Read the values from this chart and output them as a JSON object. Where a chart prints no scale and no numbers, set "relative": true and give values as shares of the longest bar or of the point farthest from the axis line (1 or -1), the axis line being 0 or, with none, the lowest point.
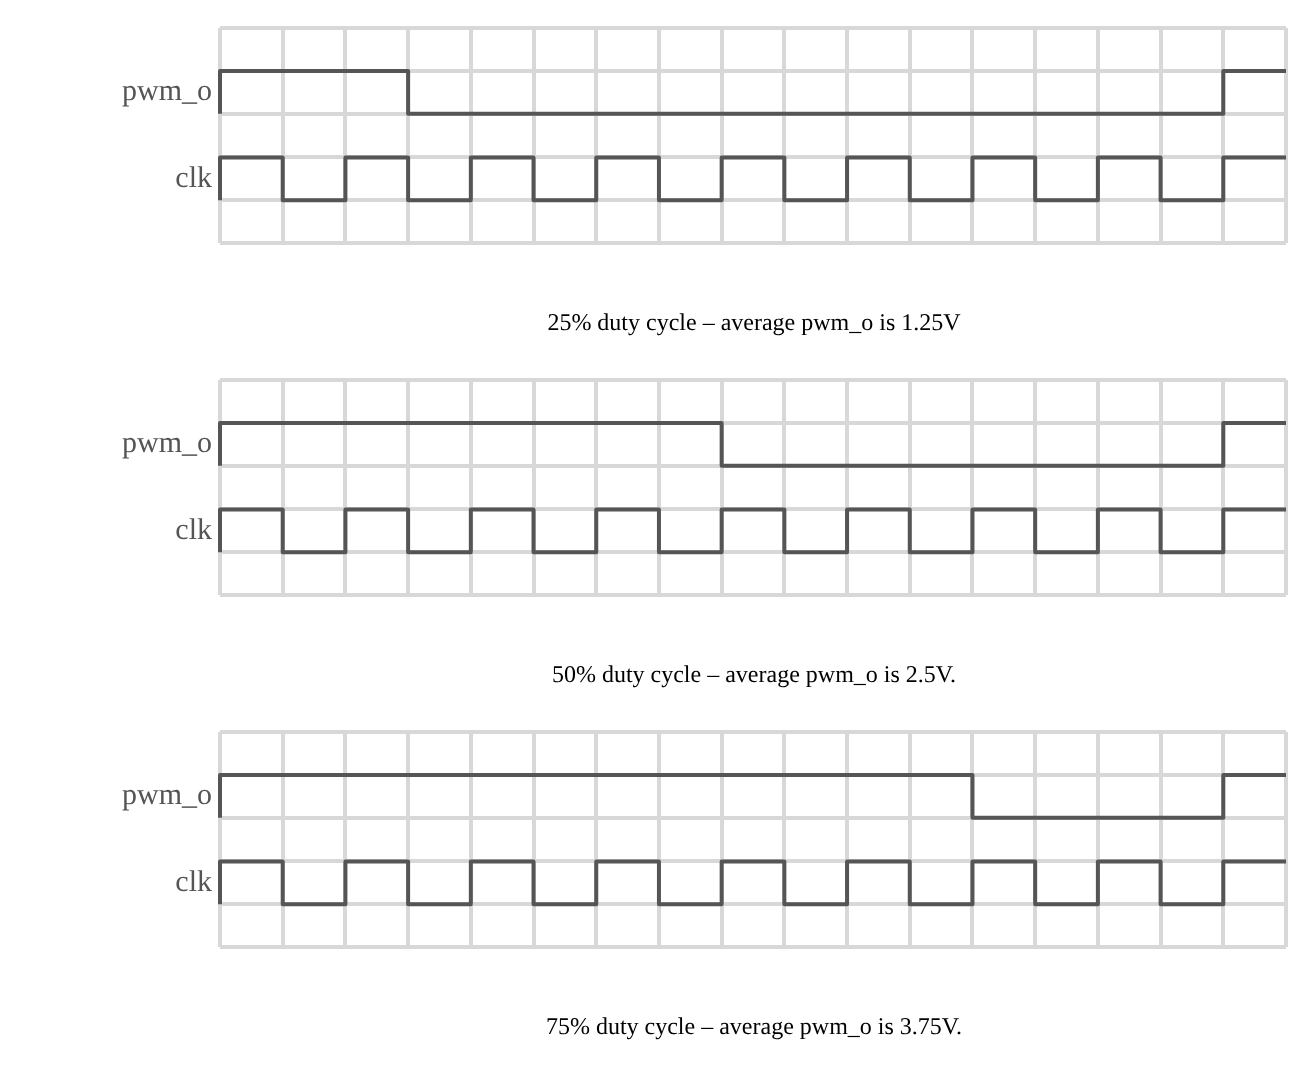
{
  "chart_data": [
    {
      "type": "step",
      "relative": true,
      "categories": [
        null,
        null,
        null,
        null,
        null,
        null,
        null,
        null,
        null,
        null,
        null,
        null,
        null,
        null,
        null,
        null,
        null,
        null
      ],
      "grid": true,
      "legend": false,
      "marker": "none",
      "line_style": "solid",
      "annotations": [
        "25% duty cycle – average pwm_o is 1.25V"
      ],
      "series": [
        {
          "name": "pwm_o",
          "color": "#555555",
          "values": [
            0.67,
            1,
            1,
            1,
            0.67,
            0.67,
            0.67,
            0.67,
            0.67,
            0.67,
            0.67,
            0.67,
            0.67,
            0.67,
            0.67,
            0.67,
            0.67,
            1
          ]
        },
        {
          "name": "clk",
          "color": "#555555",
          "values": [
            0,
            0.33,
            0,
            0.33,
            0,
            0.33,
            0,
            0.33,
            0,
            0.33,
            0,
            0.33,
            0,
            0.33,
            0,
            0.33,
            0,
            0.33
          ]
        }
      ]
    },
    {
      "type": "step",
      "relative": true,
      "categories": [
        null,
        null,
        null,
        null,
        null,
        null,
        null,
        null,
        null,
        null,
        null,
        null,
        null,
        null,
        null,
        null,
        null,
        null
      ],
      "grid": true,
      "legend": false,
      "marker": "none",
      "line_style": "solid",
      "annotations": [
        "50% duty cycle – average pwm_o is 2.5V."
      ],
      "series": [
        {
          "name": "pwm_o",
          "color": "#555555",
          "values": [
            0.67,
            1,
            1,
            1,
            1,
            1,
            1,
            1,
            1,
            0.67,
            0.67,
            0.67,
            0.67,
            0.67,
            0.67,
            0.67,
            0.67,
            1
          ]
        },
        {
          "name": "clk",
          "color": "#555555",
          "values": [
            0,
            0.33,
            0,
            0.33,
            0,
            0.33,
            0,
            0.33,
            0,
            0.33,
            0,
            0.33,
            0,
            0.33,
            0,
            0.33,
            0,
            0.33
          ]
        }
      ]
    },
    {
      "type": "step",
      "relative": true,
      "categories": [
        null,
        null,
        null,
        null,
        null,
        null,
        null,
        null,
        null,
        null,
        null,
        null,
        null,
        null,
        null,
        null,
        null,
        null
      ],
      "grid": true,
      "legend": false,
      "marker": "none",
      "line_style": "solid",
      "annotations": [
        "75% duty cycle – average pwm_o is 3.75V."
      ],
      "series": [
        {
          "name": "pwm_o",
          "color": "#555555",
          "values": [
            0.67,
            1,
            1,
            1,
            1,
            1,
            1,
            1,
            1,
            1,
            1,
            1,
            1,
            0.67,
            0.67,
            0.67,
            0.67,
            1
          ]
        },
        {
          "name": "clk",
          "color": "#555555",
          "values": [
            0,
            0.33,
            0,
            0.33,
            0,
            0.33,
            0,
            0.33,
            0,
            0.33,
            0,
            0.33,
            0,
            0.33,
            0,
            0.33,
            0,
            0.33
          ]
        }
      ]
    }
  ]
}
